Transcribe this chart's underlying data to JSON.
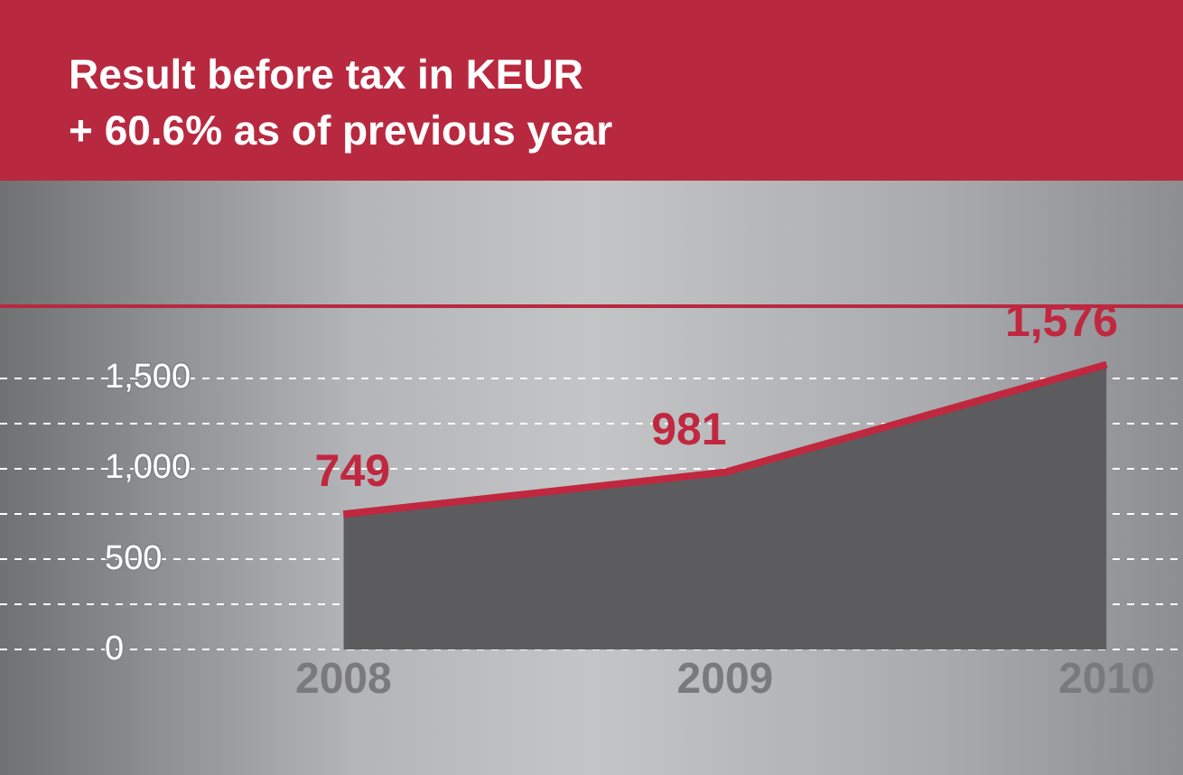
{
  "chart_data": {
    "type": "area",
    "title": "Result before tax in KEUR",
    "subtitle": "+ 60.6% as of previous year",
    "x": [
      2008,
      2009,
      2010
    ],
    "series": [
      {
        "color": "#c0283f",
        "values": [
          749,
          981,
          1576
        ],
        "value_labels": [
          "749",
          "981",
          "1,576"
        ]
      }
    ],
    "xlim": [
      2007.1,
      2010.2
    ],
    "xticks": [
      2008,
      2009,
      2010
    ],
    "ylim": [
      0,
      1900
    ],
    "yticks": [
      0,
      {
        "value": 250,
        "label": null
      },
      500,
      {
        "value": 750,
        "label": null
      },
      {
        "value": 1000,
        "label": "1,000"
      },
      {
        "value": 1250,
        "label": null
      },
      {
        "value": 1500,
        "label": "1,500"
      }
    ],
    "grid": "y",
    "marker": "none",
    "line_style": "solid"
  }
}
